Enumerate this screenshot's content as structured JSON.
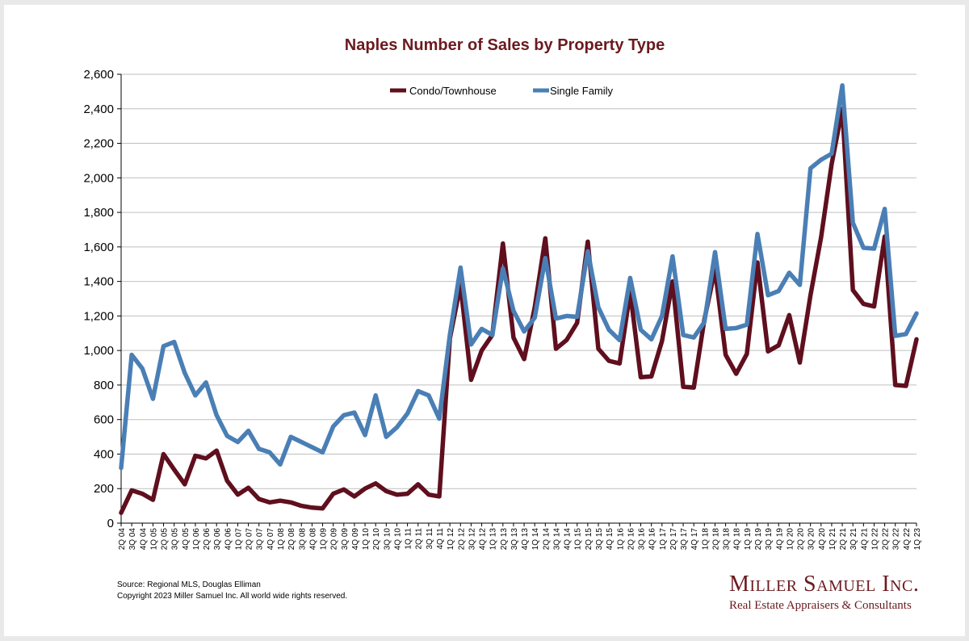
{
  "colors": {
    "condo": "#5f0f1e",
    "single_family": "#4a7fb5",
    "title": "#6b1a1f",
    "grid": "#bfbfbf",
    "logo": "#6b1a1f"
  },
  "source": {
    "line1": "Source: Regional MLS, Douglas Elliman",
    "line2": "Copyright 2023 Miller Samuel Inc.  All world wide rights reserved."
  },
  "logo": {
    "name": "Miller Samuel Inc.",
    "tagline": "Real Estate Appraisers & Consultants"
  },
  "chart_data": {
    "type": "line",
    "title": "Naples Number of Sales by Property Type",
    "xlabel": "",
    "ylabel": "",
    "ylim": [
      0,
      2600
    ],
    "yticks": [
      0,
      200,
      400,
      600,
      800,
      1000,
      1200,
      1400,
      1600,
      1800,
      2000,
      2200,
      2400,
      2600
    ],
    "ytick_labels": [
      "0",
      "200",
      "400",
      "600",
      "800",
      "1,000",
      "1,200",
      "1,400",
      "1,600",
      "1,800",
      "2,000",
      "2,200",
      "2,400",
      "2,600"
    ],
    "grid": true,
    "legend_position": "top-center",
    "categories": [
      "2Q 04",
      "3Q 04",
      "4Q 04",
      "1Q 05",
      "2Q 05",
      "3Q 05",
      "4Q 05",
      "1Q 06",
      "2Q 06",
      "3Q 06",
      "4Q 06",
      "1Q 07",
      "2Q 07",
      "3Q 07",
      "4Q 07",
      "1Q 08",
      "2Q 08",
      "3Q 08",
      "4Q 08",
      "1Q 09",
      "2Q 09",
      "3Q 09",
      "4Q 09",
      "1Q 10",
      "2Q 10",
      "3Q 10",
      "4Q 10",
      "1Q 11",
      "2Q 11",
      "3Q 11",
      "4Q 11",
      "1Q 12",
      "2Q 12",
      "3Q 12",
      "4Q 12",
      "1Q 13",
      "2Q 13",
      "3Q 13",
      "4Q 13",
      "1Q 14",
      "2Q 14",
      "3Q 14",
      "4Q 14",
      "1Q 15",
      "2Q 15",
      "3Q 15",
      "4Q 15",
      "1Q 16",
      "2Q 16",
      "3Q 16",
      "4Q 16",
      "1Q 17",
      "2Q 17",
      "3Q 17",
      "4Q 17",
      "1Q 18",
      "2Q 18",
      "3Q 18",
      "4Q 18",
      "1Q 19",
      "2Q 19",
      "3Q 19",
      "4Q 19",
      "1Q 20",
      "2Q 20",
      "3Q 20",
      "4Q 20",
      "1Q 21",
      "2Q 21",
      "3Q 21",
      "4Q 21",
      "1Q 22",
      "2Q 22",
      "3Q 22",
      "4Q 22",
      "1Q 23"
    ],
    "tick_labels_shown": [
      "2Q 04",
      "3Q 04",
      "4Q 04",
      "1Q 05",
      "2Q 05",
      "3Q 05",
      "4Q 05",
      "1Q 06",
      "2Q 06",
      "3Q 06",
      "4Q 06",
      "1Q 07",
      "2Q 07",
      "3Q 07",
      "4Q 07",
      "1Q 08",
      "2Q 08",
      "3Q 08",
      "4Q 08",
      "1Q 09",
      "2Q 09",
      "3Q 09",
      "4Q 09",
      "1Q 10",
      "2Q 10",
      "3Q 10",
      "4Q 10",
      "1Q 11",
      "2Q 11",
      "3Q 11",
      "4Q 11",
      "1Q 12",
      "2Q 12",
      "3Q 12",
      "4Q 12",
      "1Q 13",
      "2Q 13",
      "3Q 13",
      "4Q 13",
      "1Q 14",
      "2Q 14",
      "3Q 14",
      "4Q 14",
      "1Q 15",
      "2Q 15",
      "3Q 15",
      "4Q 15",
      "1Q 16",
      "2Q 16",
      "3Q 16",
      "4Q 16",
      "1Q 17",
      "2Q 17",
      "3Q 17",
      "4Q 17",
      "1Q 18",
      "2Q 18",
      "3Q 18",
      "4Q 18",
      "1Q 19",
      "2Q 19",
      "3Q 19",
      "4Q 19",
      "1Q 20",
      "2Q 20",
      "3Q 20",
      "4Q 20",
      "1Q 21",
      "2Q 21",
      "3Q 21",
      "4Q 21",
      "1Q 22",
      "2Q 22",
      "3Q 22",
      "4Q 22",
      "1Q 23"
    ],
    "series": [
      {
        "name": "Condo/Townhouse",
        "values": [
          60,
          190,
          170,
          135,
          400,
          310,
          225,
          390,
          375,
          420,
          245,
          165,
          205,
          140,
          120,
          130,
          120,
          100,
          90,
          85,
          170,
          195,
          155,
          200,
          230,
          185,
          165,
          170,
          225,
          165,
          155,
          1070,
          1380,
          830,
          1000,
          1090,
          1620,
          1075,
          950,
          1250,
          1650,
          1010,
          1060,
          1160,
          1630,
          1010,
          940,
          925,
          1340,
          845,
          850,
          1055,
          1400,
          790,
          785,
          1180,
          1470,
          975,
          865,
          980,
          1510,
          995,
          1030,
          1205,
          930,
          1320,
          1655,
          2080,
          2400,
          1350,
          1270,
          1255,
          1660,
          800,
          795,
          1065
        ]
      },
      {
        "name": "Single Family",
        "values": [
          320,
          975,
          895,
          720,
          1025,
          1050,
          870,
          740,
          815,
          625,
          505,
          470,
          535,
          430,
          410,
          340,
          500,
          470,
          440,
          410,
          560,
          625,
          640,
          510,
          740,
          500,
          555,
          635,
          765,
          740,
          605,
          1090,
          1480,
          1035,
          1125,
          1090,
          1475,
          1230,
          1110,
          1190,
          1535,
          1185,
          1200,
          1195,
          1575,
          1250,
          1120,
          1060,
          1420,
          1120,
          1065,
          1200,
          1545,
          1090,
          1075,
          1165,
          1570,
          1125,
          1130,
          1150,
          1675,
          1320,
          1345,
          1450,
          1380,
          2055,
          2105,
          2140,
          2535,
          1740,
          1595,
          1590,
          1820,
          1085,
          1095,
          1215
        ]
      }
    ]
  }
}
